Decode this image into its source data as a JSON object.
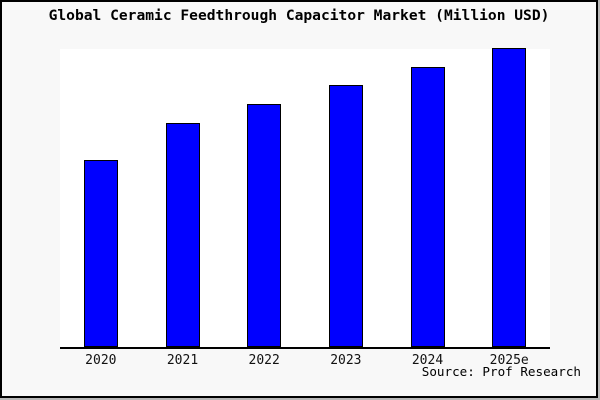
{
  "title": "Global Ceramic Feedthrough Capacitor Market (Million USD)",
  "source_credit": "Source: Prof Research",
  "colors": {
    "bar_fill": "#0000ff",
    "bar_border": "#000000",
    "plot_background": "#ffffff",
    "outer_background": "#f8f8f8",
    "frame_border": "#000000",
    "text": "#000000"
  },
  "chart_data": {
    "type": "bar",
    "title": "Global Ceramic Feedthrough Capacitor Market (Million USD)",
    "categories": [
      "2020",
      "2021",
      "2022",
      "2023",
      "2024",
      "2025e"
    ],
    "values": [
      62.5,
      74.9,
      81.4,
      87.5,
      93.6,
      100
    ],
    "values_unit": "percent of tallest bar (chart displays no numeric y-axis or data labels)",
    "xlabel": "",
    "ylabel": "",
    "grid": false,
    "legend": false,
    "y_axis_visible": false,
    "bar_color": "#0000ff",
    "bar_border_color": "#000000",
    "source": "Source: Prof Research"
  }
}
